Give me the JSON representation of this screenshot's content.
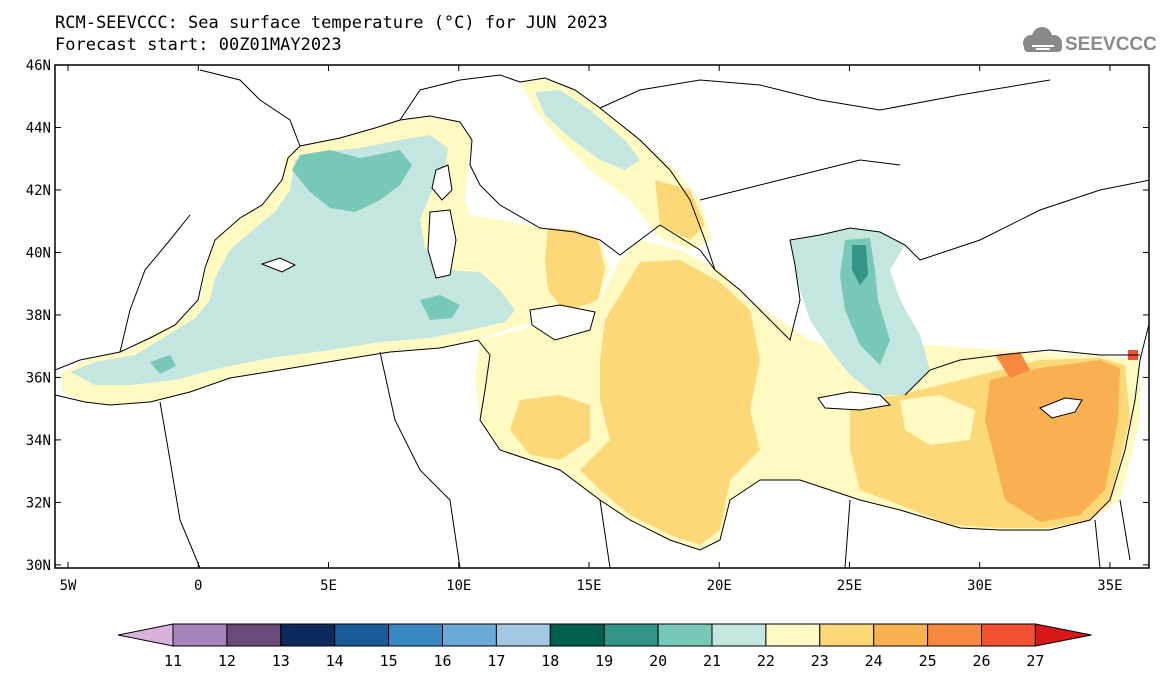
{
  "title": {
    "line1": "RCM-SEEVCCC: Sea surface temperature (°C) for JUN 2023",
    "line2": "Forecast start: 00Z01MAY2023"
  },
  "logo": {
    "text": "SEEVCCC",
    "icon": "cloud-icon",
    "color": "#8a8a8a"
  },
  "map": {
    "lon_range": [
      -5.5,
      36.5
    ],
    "lat_range": [
      29.9,
      46.0
    ],
    "lat_ticks": [
      "46N",
      "44N",
      "42N",
      "40N",
      "38N",
      "36N",
      "34N",
      "32N",
      "30N"
    ],
    "lat_values": [
      46,
      44,
      42,
      40,
      38,
      36,
      34,
      32,
      30
    ],
    "lon_ticks": [
      "5W",
      "0",
      "5E",
      "10E",
      "15E",
      "20E",
      "25E",
      "30E",
      "35E"
    ],
    "lon_values": [
      -5,
      0,
      5,
      10,
      15,
      20,
      25,
      30,
      35
    ]
  },
  "colorbar": {
    "labels": [
      "11",
      "12",
      "13",
      "14",
      "15",
      "16",
      "17",
      "18",
      "19",
      "20",
      "21",
      "22",
      "23",
      "24",
      "25",
      "26",
      "27"
    ],
    "colors": [
      "#d8b2dc",
      "#a884be",
      "#6a4a78",
      "#0e2a5c",
      "#1a5a98",
      "#3a88c2",
      "#6aaad6",
      "#a2c8e2",
      "#006050",
      "#339488",
      "#78c8b8",
      "#c4e6e0",
      "#fefac2",
      "#fcd878",
      "#f8b050",
      "#f68840",
      "#f25030",
      "#d81818"
    ]
  }
}
